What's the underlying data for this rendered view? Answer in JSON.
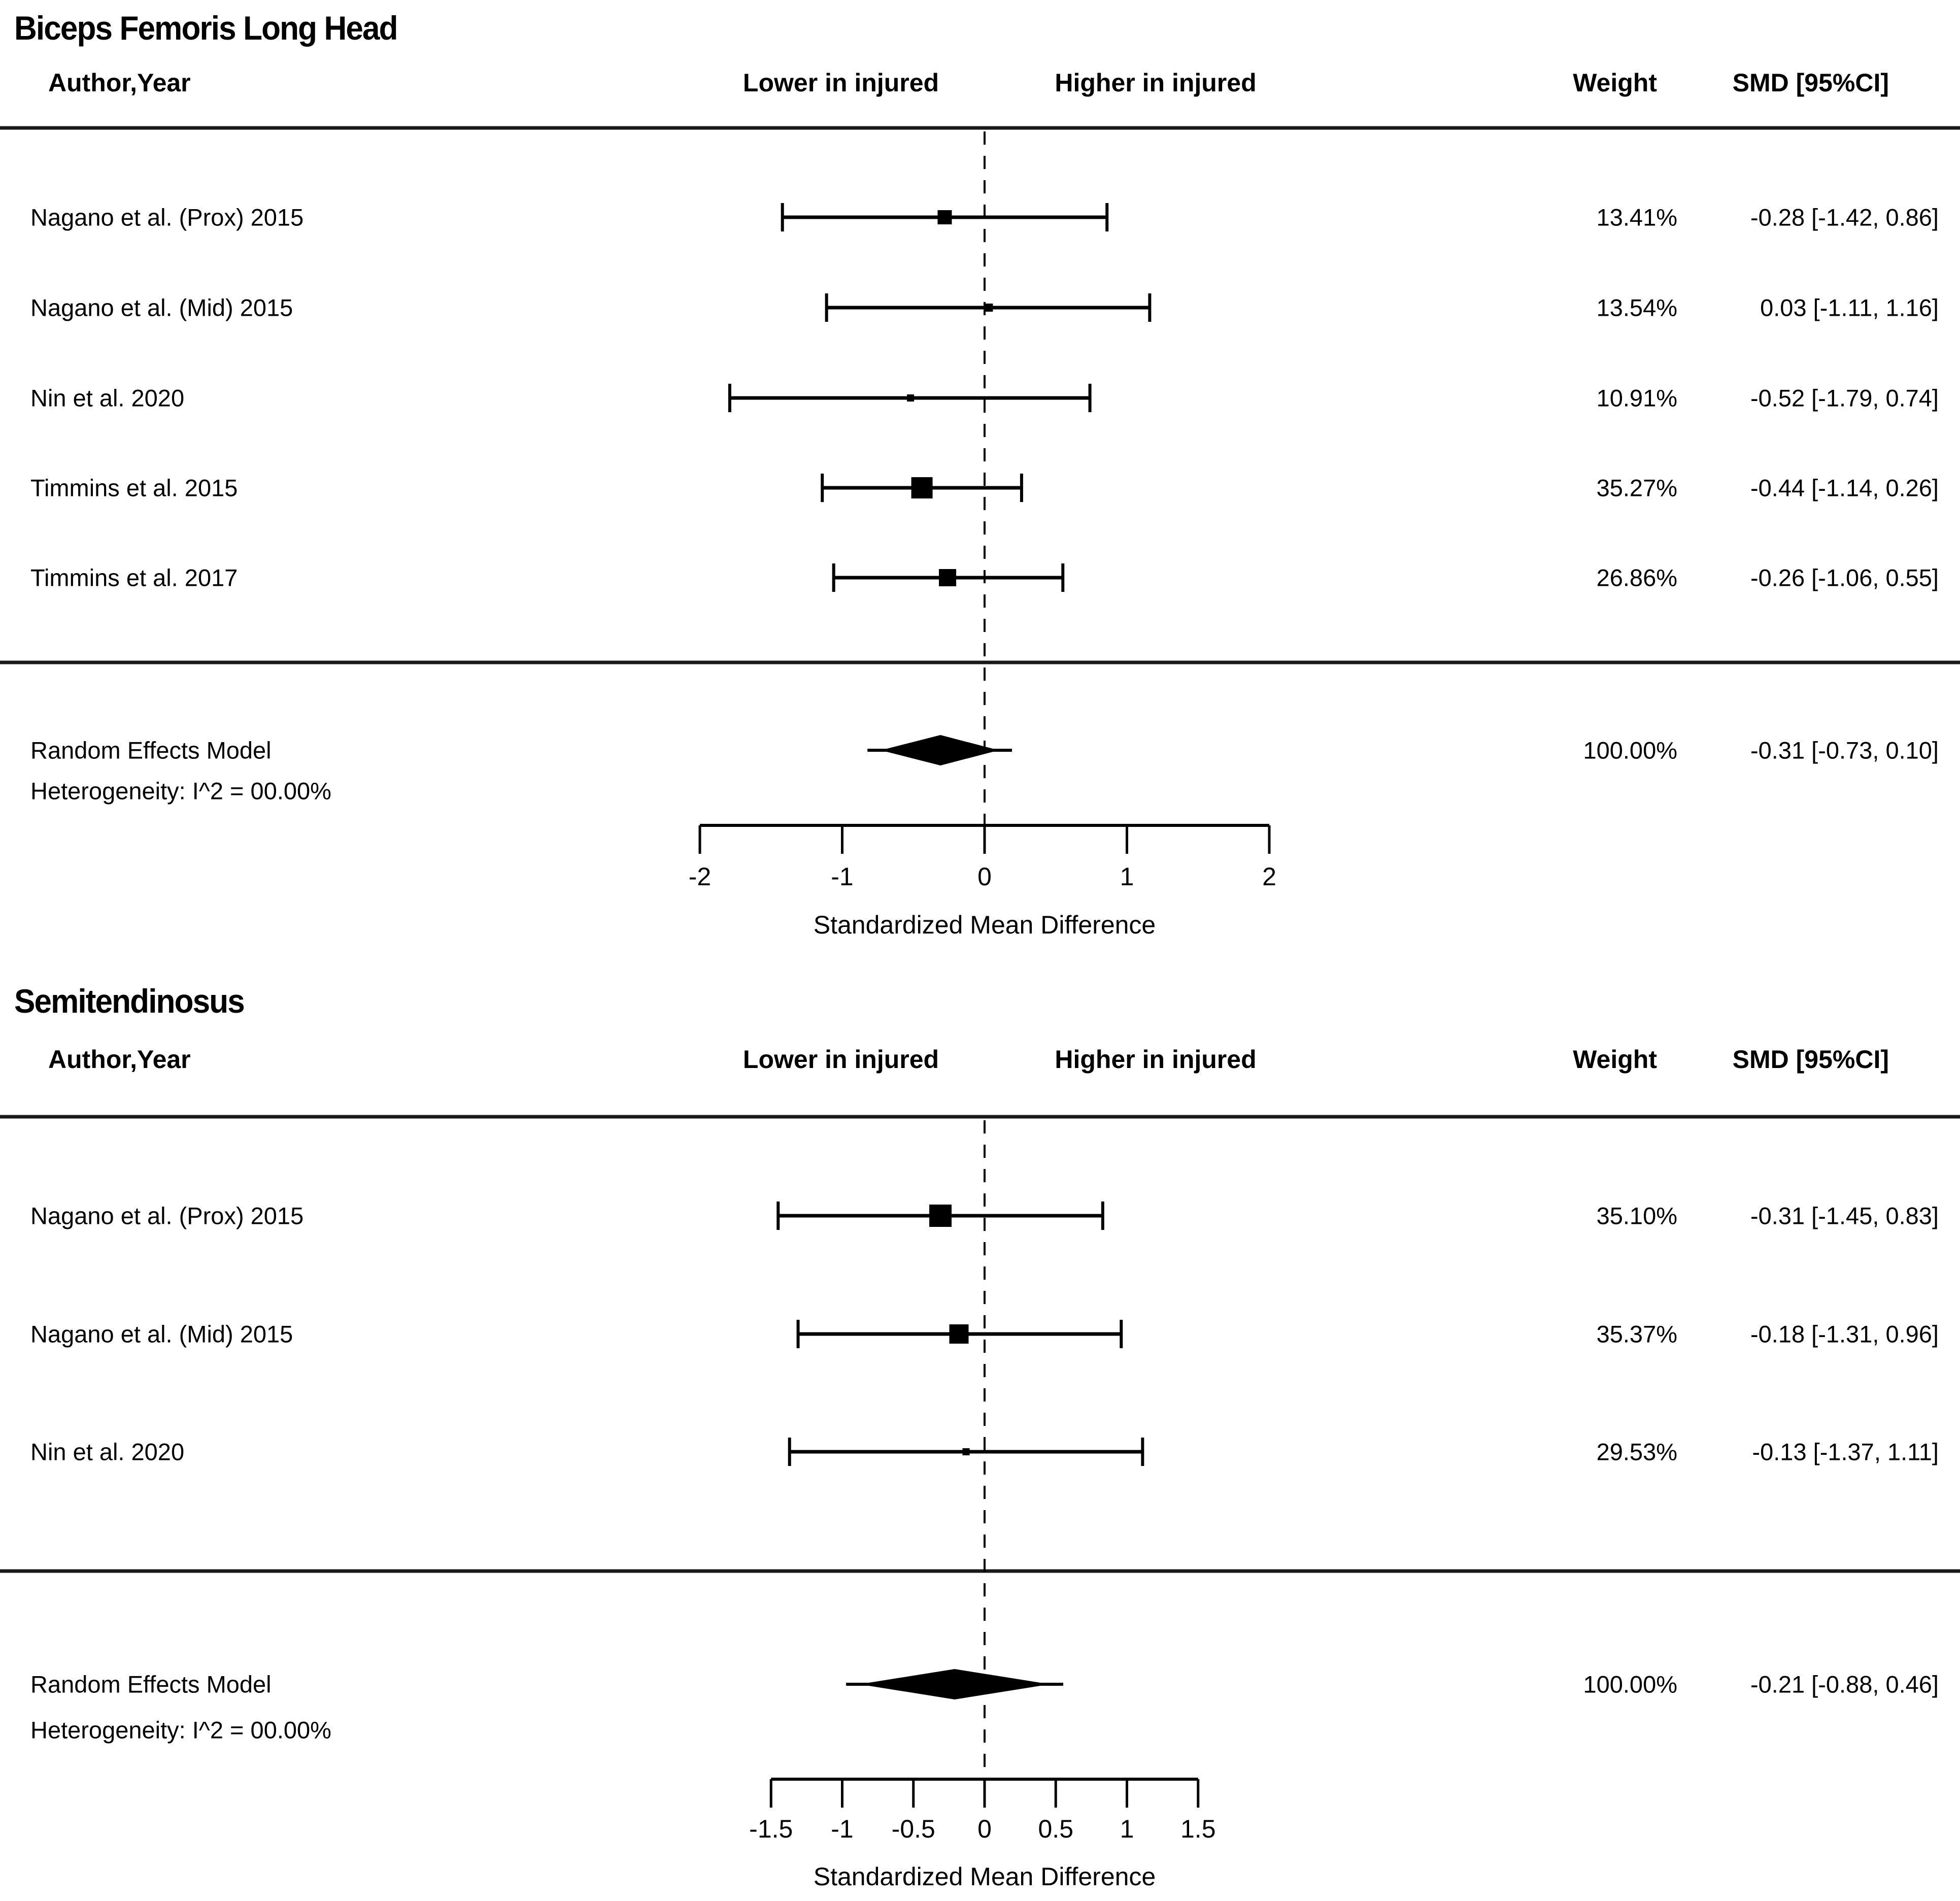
{
  "chart_data": {
    "type": "forest",
    "colors": {
      "foreground": "#000000",
      "background": "#ffffff"
    },
    "panels": [
      {
        "title": "Biceps Femoris Long Head",
        "columns": {
          "author": "Author,Year",
          "lower": "Lower in injured",
          "higher": "Higher in injured",
          "weight": "Weight",
          "smd": "SMD [95%CI]"
        },
        "studies": [
          {
            "label": "Nagano et al. (Prox) 2015",
            "weight": "13.41%",
            "smd": "-0.28 [-1.42, 0.86]",
            "est": -0.28,
            "lo": -1.42,
            "hi": 0.86
          },
          {
            "label": "Nagano et al. (Mid) 2015",
            "weight": "13.54%",
            "smd": "0.03 [-1.11, 1.16]",
            "est": 0.03,
            "lo": -1.11,
            "hi": 1.16
          },
          {
            "label": "Nin et al. 2020",
            "weight": "10.91%",
            "smd": "-0.52 [-1.79, 0.74]",
            "est": -0.52,
            "lo": -1.79,
            "hi": 0.74
          },
          {
            "label": "Timmins et al. 2015",
            "weight": "35.27%",
            "smd": "-0.44 [-1.14, 0.26]",
            "est": -0.44,
            "lo": -1.14,
            "hi": 0.26
          },
          {
            "label": "Timmins et al. 2017",
            "weight": "26.86%",
            "smd": "-0.26 [-1.06, 0.55]",
            "est": -0.26,
            "lo": -1.06,
            "hi": 0.55
          }
        ],
        "summary": {
          "label": "Random Effects Model",
          "heterogeneity": "Heterogeneity: I^2 = 00.00%",
          "weight": "100.00%",
          "smd": "-0.31 [-0.73, 0.10]",
          "est": -0.31,
          "lo": -0.73,
          "hi": 0.1
        },
        "axis": {
          "title": "Standardized Mean Difference",
          "min": -2,
          "max": 2,
          "zero_line": 0,
          "ticks": [
            -2,
            -1,
            0,
            1,
            2
          ],
          "tick_labels": [
            "-2",
            "-1",
            "0",
            "1",
            "2"
          ]
        }
      },
      {
        "title": "Semitendinosus",
        "columns": {
          "author": "Author,Year",
          "lower": "Lower in injured",
          "higher": "Higher in injured",
          "weight": "Weight",
          "smd": "SMD [95%CI]"
        },
        "studies": [
          {
            "label": "Nagano et al. (Prox) 2015",
            "weight": "35.10%",
            "smd": "-0.31 [-1.45, 0.83]",
            "est": -0.31,
            "lo": -1.45,
            "hi": 0.83
          },
          {
            "label": "Nagano et al. (Mid) 2015",
            "weight": "35.37%",
            "smd": "-0.18 [-1.31, 0.96]",
            "est": -0.18,
            "lo": -1.31,
            "hi": 0.96
          },
          {
            "label": "Nin et al. 2020",
            "weight": "29.53%",
            "smd": "-0.13 [-1.37, 1.11]",
            "est": -0.13,
            "lo": -1.37,
            "hi": 1.11
          }
        ],
        "summary": {
          "label": "Random Effects Model",
          "heterogeneity": "Heterogeneity: I^2 = 00.00%",
          "weight": "100.00%",
          "smd": "-0.21 [-0.88, 0.46]",
          "est": -0.21,
          "lo": -0.88,
          "hi": 0.46
        },
        "axis": {
          "title": "Standardized Mean Difference",
          "min": -1.5,
          "max": 1.5,
          "zero_line": 0,
          "ticks": [
            -1.5,
            -1,
            -0.5,
            0,
            0.5,
            1,
            1.5
          ],
          "tick_labels": [
            "-1.5",
            "-1",
            "-0.5",
            "0",
            "0.5",
            "1",
            "1.5"
          ]
        }
      }
    ]
  }
}
